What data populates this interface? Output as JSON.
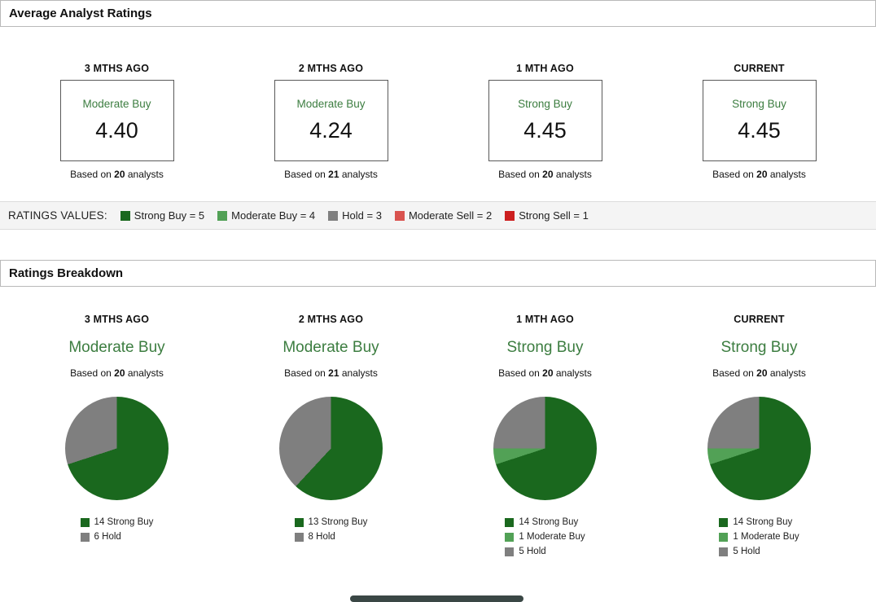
{
  "average_section": {
    "title": "Average Analyst Ratings",
    "columns": [
      {
        "period": "3 MTHS AGO",
        "rating": "Moderate Buy",
        "value": "4.40",
        "based_prefix": "Based on",
        "analyst_count": "20",
        "based_suffix": "analysts"
      },
      {
        "period": "2 MTHS AGO",
        "rating": "Moderate Buy",
        "value": "4.24",
        "based_prefix": "Based on",
        "analyst_count": "21",
        "based_suffix": "analysts"
      },
      {
        "period": "1 MTH AGO",
        "rating": "Strong Buy",
        "value": "4.45",
        "based_prefix": "Based on",
        "analyst_count": "20",
        "based_suffix": "analysts"
      },
      {
        "period": "CURRENT",
        "rating": "Strong Buy",
        "value": "4.45",
        "based_prefix": "Based on",
        "analyst_count": "20",
        "based_suffix": "analysts"
      }
    ],
    "ratings_values": {
      "label": "RATINGS VALUES:",
      "items": [
        {
          "label": "Strong Buy = 5",
          "color": "#1a681e"
        },
        {
          "label": "Moderate Buy = 4",
          "color": "#52a156"
        },
        {
          "label": "Hold = 3",
          "color": "#7f7f7f"
        },
        {
          "label": "Moderate Sell = 2",
          "color": "#d9534f"
        },
        {
          "label": "Strong Sell = 1",
          "color": "#cc1f1f"
        }
      ]
    }
  },
  "breakdown_section": {
    "title": "Ratings Breakdown",
    "columns": [
      {
        "period": "3 MTHS AGO",
        "rating": "Moderate Buy",
        "based_prefix": "Based on",
        "analyst_count": "20",
        "based_suffix": "analysts"
      },
      {
        "period": "2 MTHS AGO",
        "rating": "Moderate Buy",
        "based_prefix": "Based on",
        "analyst_count": "21",
        "based_suffix": "analysts"
      },
      {
        "period": "1 MTH AGO",
        "rating": "Strong Buy",
        "based_prefix": "Based on",
        "analyst_count": "20",
        "based_suffix": "analysts"
      },
      {
        "period": "CURRENT",
        "rating": "Strong Buy",
        "based_prefix": "Based on",
        "analyst_count": "20",
        "based_suffix": "analysts"
      }
    ]
  },
  "chart_data": [
    {
      "type": "pie",
      "title": "3 MTHS AGO",
      "labels": [
        "Strong Buy",
        "Hold"
      ],
      "values": [
        14,
        6
      ],
      "colors": [
        "#1a681e",
        "#7f7f7f"
      ],
      "legend_position": "bottom-left",
      "start_angle_deg": 0,
      "direction": "clockwise"
    },
    {
      "type": "pie",
      "title": "2 MTHS AGO",
      "labels": [
        "Strong Buy",
        "Hold"
      ],
      "values": [
        13,
        8
      ],
      "colors": [
        "#1a681e",
        "#7f7f7f"
      ],
      "legend_position": "bottom-left",
      "start_angle_deg": 0,
      "direction": "clockwise"
    },
    {
      "type": "pie",
      "title": "1 MTH AGO",
      "labels": [
        "Strong Buy",
        "Moderate Buy",
        "Hold"
      ],
      "values": [
        14,
        1,
        5
      ],
      "colors": [
        "#1a681e",
        "#52a156",
        "#7f7f7f"
      ],
      "legend_position": "bottom-left",
      "start_angle_deg": 0,
      "direction": "clockwise"
    },
    {
      "type": "pie",
      "title": "CURRENT",
      "labels": [
        "Strong Buy",
        "Moderate Buy",
        "Hold"
      ],
      "values": [
        14,
        1,
        5
      ],
      "colors": [
        "#1a681e",
        "#52a156",
        "#7f7f7f"
      ],
      "legend_position": "bottom-left",
      "start_angle_deg": 0,
      "direction": "clockwise"
    }
  ]
}
